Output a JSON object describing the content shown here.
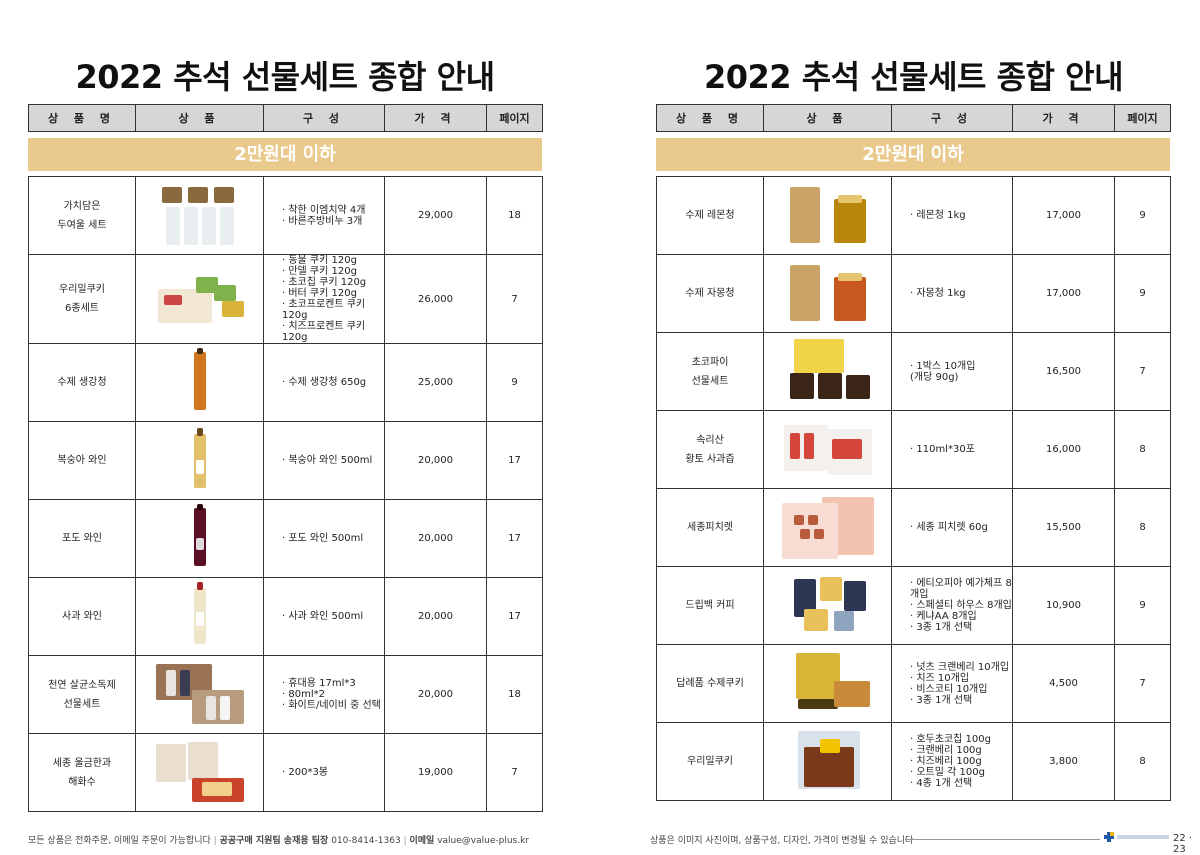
{
  "headers": [
    "상 품 명",
    "상 품",
    "구 성",
    "가 격",
    "페이지"
  ],
  "left": {
    "title": "2022 추석 선물세트 종합 안내",
    "band": "2만원대 이하",
    "rows": [
      {
        "name": "가치담은\n두여울 세트",
        "components": "· 착한 이엠치약 4개\n· 바른주방비누 3개",
        "price": "29,000",
        "page": "18"
      },
      {
        "name": "우리밀쿠키\n6종세트",
        "components": "· 동물 쿠키 120g\n· 만델 쿠키 120g\n· 초코칩 쿠키 120g\n· 버터 쿠키 120g\n· 초코프로켄트 쿠키 120g\n· 치즈프로켄트 쿠키 120g",
        "price": "26,000",
        "page": "7"
      },
      {
        "name": "수제 생강청",
        "components": "· 수제 생강청 650g",
        "price": "25,000",
        "page": "9"
      },
      {
        "name": "복숭아 와인",
        "components": "· 복숭아 와인 500ml",
        "price": "20,000",
        "page": "17"
      },
      {
        "name": "포도 와인",
        "components": "· 포도 와인 500ml",
        "price": "20,000",
        "page": "17"
      },
      {
        "name": "사과 와인",
        "components": "· 사과 와인 500ml",
        "price": "20,000",
        "page": "17"
      },
      {
        "name": "천연 살균소독제\n선물세트",
        "components": "· 휴대용 17ml*3\n· 80ml*2\n· 화이트/네이비 중 선택",
        "price": "20,000",
        "page": "18"
      },
      {
        "name": "세종 울금한과\n해화수",
        "components": "· 200*3봉",
        "price": "19,000",
        "page": "7"
      }
    ],
    "footer": {
      "text": "모든 상품은 전화주문, 이메일 주문이 가능합니다",
      "contact": "공공구매 지원팀 송재용 팀장",
      "phone": "010-8414-1363",
      "email_label": "이메일",
      "email": "value@value-plus.kr"
    }
  },
  "right": {
    "title": "2022 추석 선물세트 종합 안내",
    "band": "2만원대 이하",
    "rows": [
      {
        "name": "수제 레몬청",
        "components": "· 레몬청 1kg",
        "price": "17,000",
        "page": "9"
      },
      {
        "name": "수제 자몽청",
        "components": "· 자몽청 1kg",
        "price": "17,000",
        "page": "9"
      },
      {
        "name": "초코파이\n선물세트",
        "components": "· 1박스 10개입\n(개당 90g)",
        "price": "16,500",
        "page": "7"
      },
      {
        "name": "속리산\n황토 사과즙",
        "components": "· 110ml*30포",
        "price": "16,000",
        "page": "8"
      },
      {
        "name": "세종피치렛",
        "components": "· 세종 피치렛 60g",
        "price": "15,500",
        "page": "8"
      },
      {
        "name": "드립백 커피",
        "components": "· 에티오피아 예가체프 8개입\n· 스페셜티 하우스 8개입\n· 케냐AA 8개입\n· 3종 1개 선택",
        "price": "10,900",
        "page": "9"
      },
      {
        "name": "답례품 수제쿠키",
        "components": "· 넛츠 크랜베리 10개입\n· 치즈 10개입\n· 비스코티 10개입\n· 3종 1개 선택",
        "price": "4,500",
        "page": "7"
      },
      {
        "name": "우리밀쿠키",
        "components": "· 호두초코칩 100g\n· 크랜베리 100g\n· 치즈베리 100g\n· 오트밀 각 100g\n· 4종 1개 선택",
        "price": "3,800",
        "page": "8"
      }
    ],
    "footer": {
      "text": "상품은 이미지 사진이며, 상품구성, 디자인, 가격이 변경될 수 있습니다"
    },
    "page_numbers": "22 · 23"
  },
  "colors": {
    "band": "#e9c98c",
    "header": "#d6d6d6"
  }
}
